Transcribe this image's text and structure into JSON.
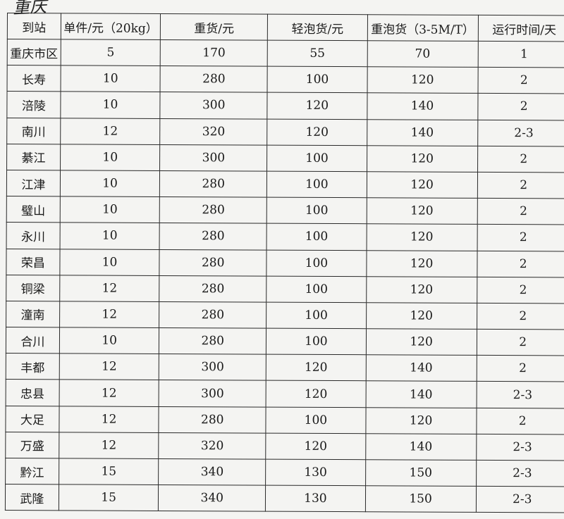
{
  "handwritten_title": "重庆",
  "headers": [
    "到站",
    "单件/元（20kg）",
    "重货/元",
    "轻泡货/元",
    "重泡货（3-5M/T）",
    "运行时间/天"
  ],
  "rows": [
    [
      "重庆市区",
      "5",
      "170",
      "55",
      "70",
      "1"
    ],
    [
      "长寿",
      "10",
      "280",
      "100",
      "120",
      "2"
    ],
    [
      "涪陵",
      "10",
      "300",
      "120",
      "140",
      "2"
    ],
    [
      "南川",
      "12",
      "320",
      "120",
      "140",
      "2-3"
    ],
    [
      "綦江",
      "10",
      "300",
      "100",
      "120",
      "2"
    ],
    [
      "江津",
      "10",
      "280",
      "100",
      "120",
      "2"
    ],
    [
      "璧山",
      "10",
      "280",
      "100",
      "120",
      "2"
    ],
    [
      "永川",
      "10",
      "280",
      "100",
      "120",
      "2"
    ],
    [
      "荣昌",
      "10",
      "280",
      "100",
      "120",
      "2"
    ],
    [
      "铜梁",
      "12",
      "280",
      "100",
      "120",
      "2"
    ],
    [
      "潼南",
      "12",
      "280",
      "100",
      "120",
      "2"
    ],
    [
      "合川",
      "10",
      "280",
      "100",
      "120",
      "2"
    ],
    [
      "丰都",
      "12",
      "300",
      "120",
      "140",
      "2"
    ],
    [
      "忠县",
      "12",
      "300",
      "120",
      "140",
      "2-3"
    ],
    [
      "大足",
      "12",
      "280",
      "100",
      "120",
      "2"
    ],
    [
      "万盛",
      "12",
      "320",
      "120",
      "140",
      "2-3"
    ],
    [
      "黔江",
      "15",
      "340",
      "130",
      "150",
      "2-3"
    ],
    [
      "武隆",
      "15",
      "340",
      "130",
      "150",
      "2-3"
    ]
  ]
}
